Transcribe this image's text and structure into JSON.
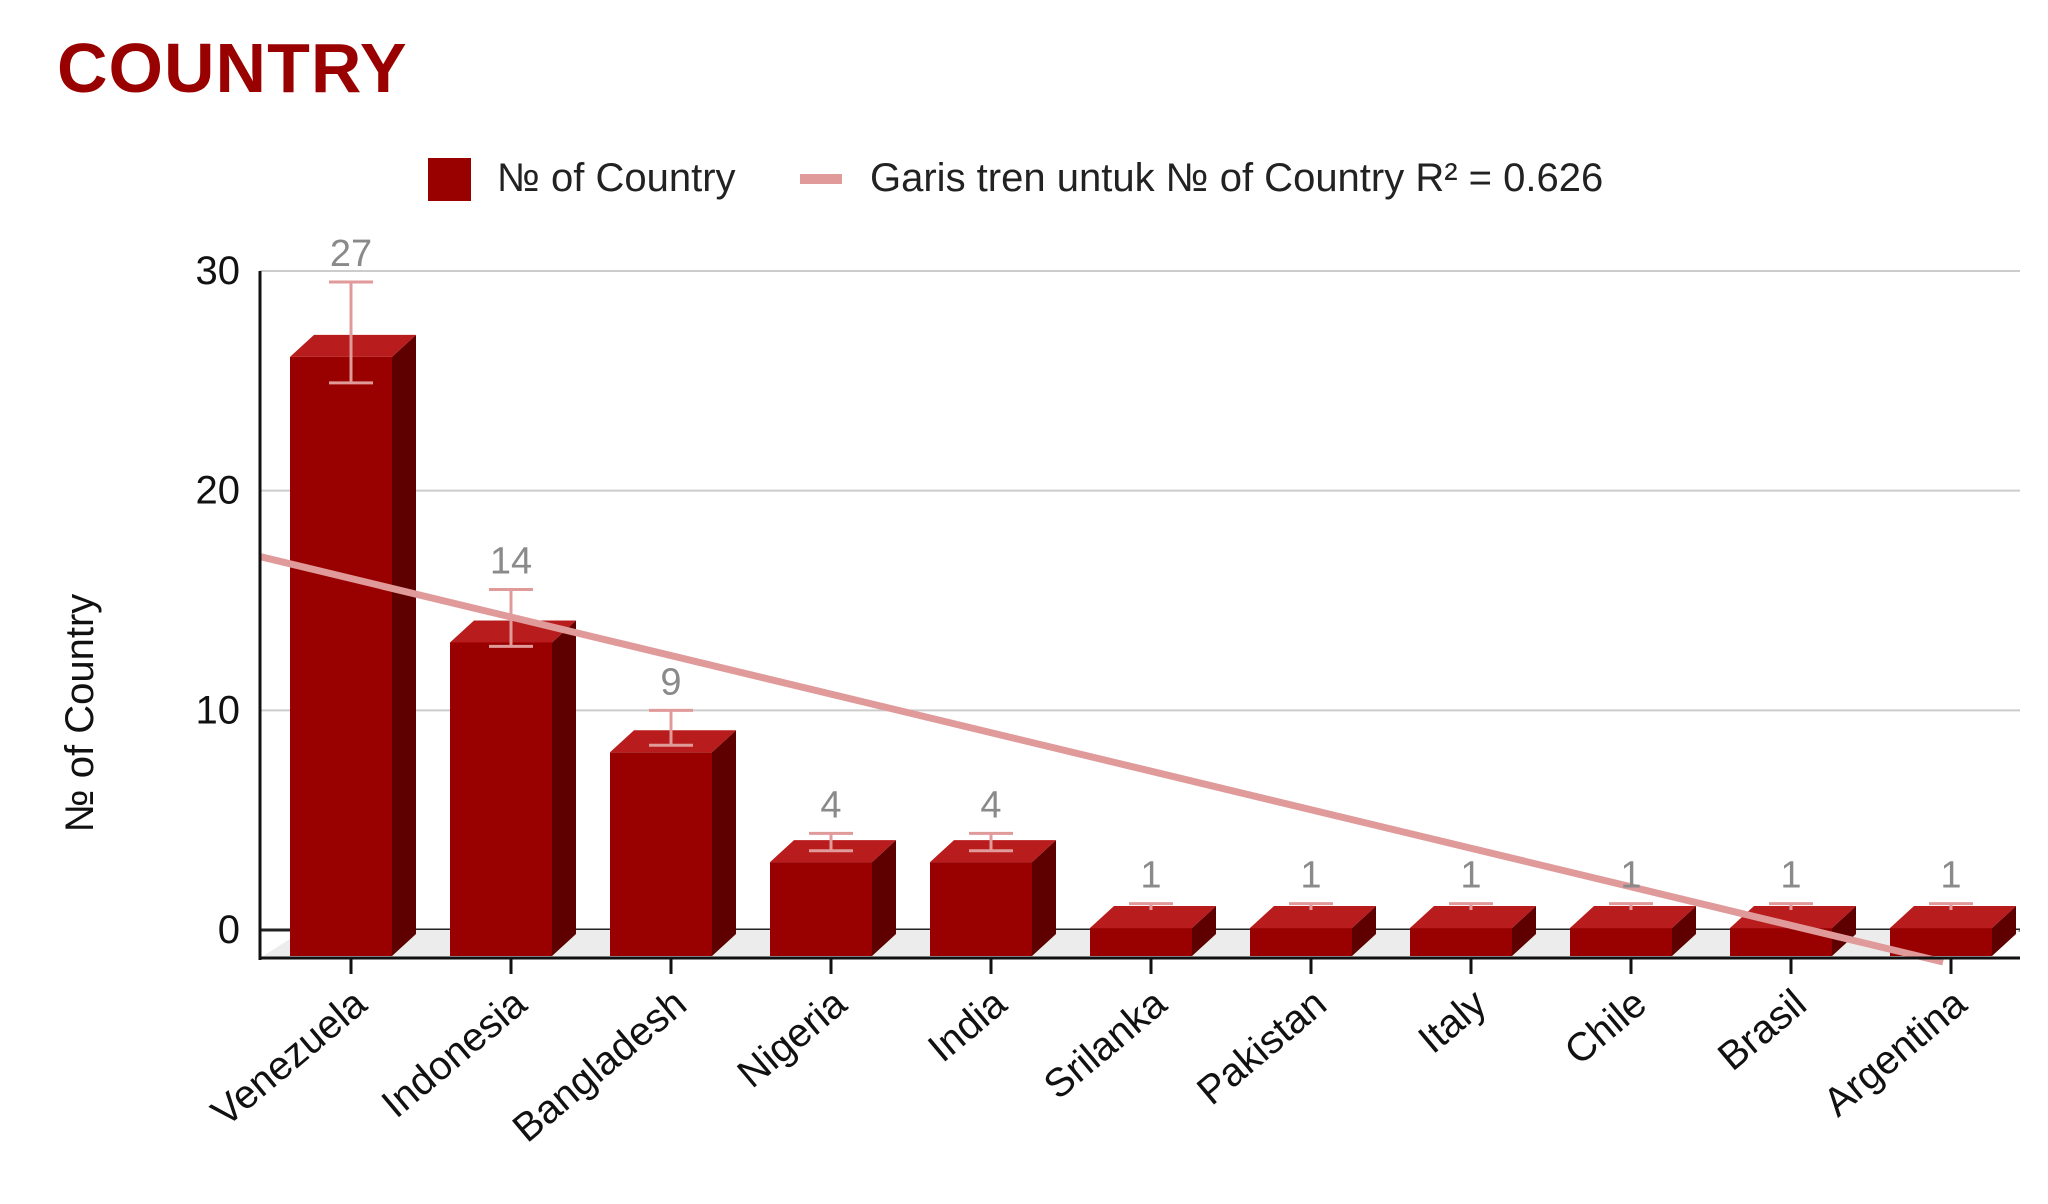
{
  "chart_data": {
    "type": "bar",
    "title": "COUNTRY",
    "ylabel": "№ of Country",
    "xlabel": "",
    "categories": [
      "Venezuela",
      "Indonesia",
      "Bangladesh",
      "Nigeria",
      "India",
      "Srilanka",
      "Pakistan",
      "Italy",
      "Chile",
      "Brasil",
      "Argentina"
    ],
    "series": [
      {
        "name": "№ of Country",
        "values": [
          27,
          14,
          9,
          4,
          4,
          1,
          1,
          1,
          1,
          1,
          1
        ],
        "data_labels": [
          "27",
          "14",
          "9",
          "4",
          "4",
          "1",
          "1",
          "1",
          "1",
          "1",
          "1"
        ],
        "error_bars": [
          [
            25,
            29.5
          ],
          [
            13,
            15.5
          ],
          [
            8.5,
            10
          ],
          [
            3.7,
            4.4
          ],
          [
            3.7,
            4.4
          ],
          [
            1,
            1.2
          ],
          [
            1,
            1.2
          ],
          [
            1,
            1.2
          ],
          [
            1,
            1.2
          ],
          [
            1,
            1.2
          ],
          [
            1,
            1.2
          ]
        ],
        "color": "#990000"
      }
    ],
    "trendline": {
      "legend_label": "Garis tren untuk № of Country R² = 0.626",
      "color": "#e09a9a",
      "start_value": 17,
      "end_value": -2.3
    },
    "yticks": [
      "0",
      "10",
      "20",
      "30"
    ],
    "ylim": [
      0,
      30
    ],
    "grid": true,
    "legend_position": "top",
    "style": "3d"
  }
}
